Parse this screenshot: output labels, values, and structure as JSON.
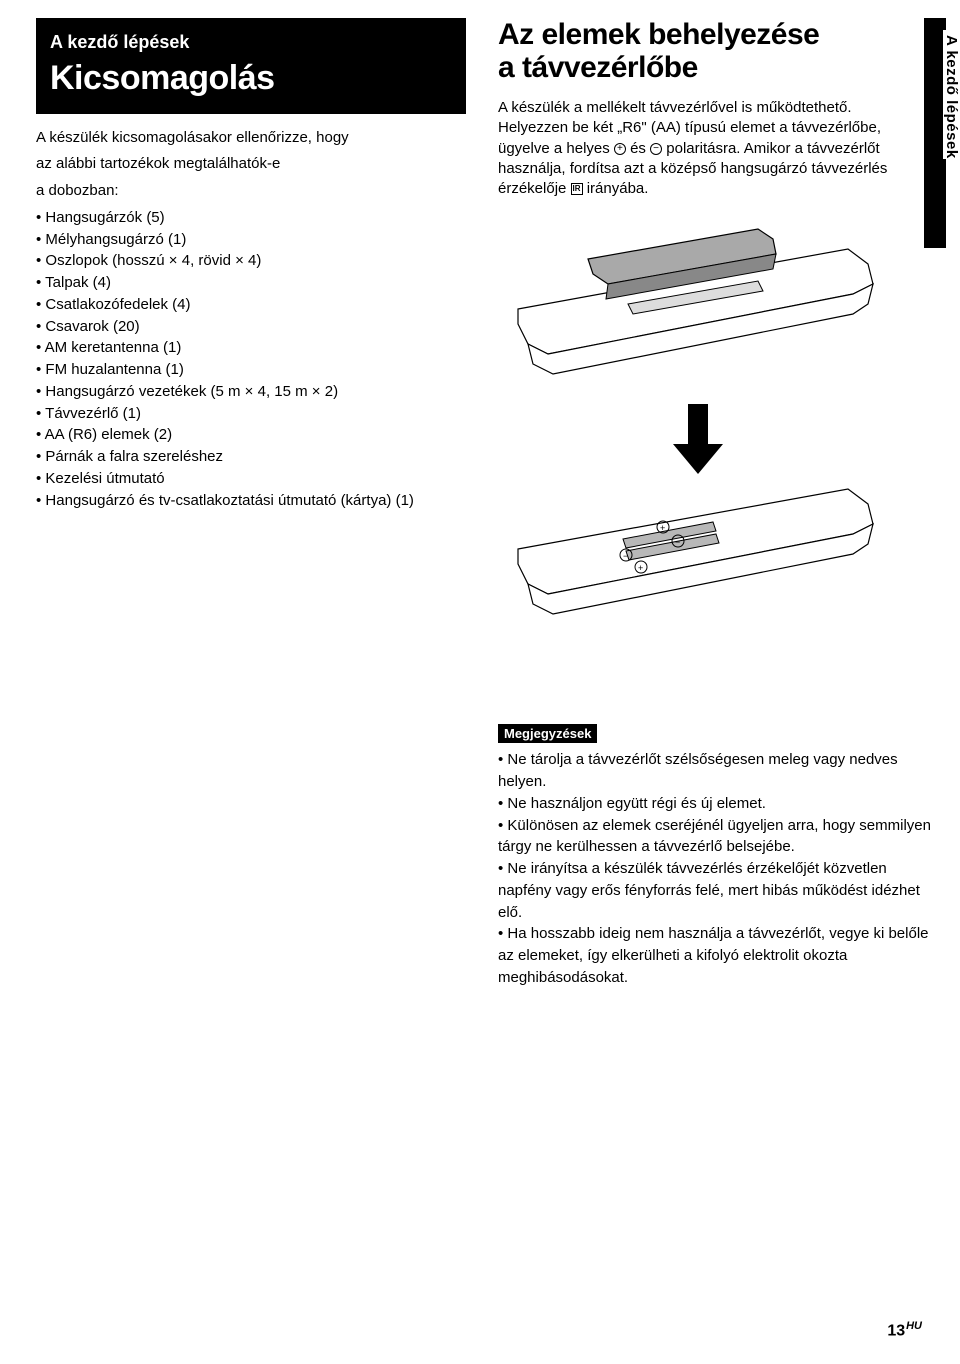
{
  "left": {
    "header_small": "A kezdő lépések",
    "header_big": "Kicsomagolás",
    "intro_line1": "A készülék kicsomagolásakor ellenőrizze, hogy",
    "intro_line2": "az alábbi tartozékok megtalálhatók-e",
    "intro_line3": "a dobozban:",
    "items": [
      "Hangsugárzók (5)",
      "Mélyhangsugárzó (1)",
      "Oszlopok (hosszú × 4, rövid × 4)",
      "Talpak (4)",
      "Csatlakozófedelek (4)",
      "Csavarok (20)",
      "AM keretantenna (1)",
      "FM huzalantenna (1)",
      "Hangsugárzó vezetékek (5 m × 4, 15 m × 2)",
      "Távvezérlő (1)",
      "AA (R6) elemek (2)",
      "Párnák a falra szereléshez",
      "Kezelési útmutató",
      "Hangsugárzó és tv-csatlakoztatási útmutató (kártya) (1)"
    ]
  },
  "right": {
    "title_line1": "Az elemek behelyezése",
    "title_line2": "a távvezérlőbe",
    "para_pre": "A készülék a mellékelt távvezérlővel is működtethető. Helyezzen be két „R6\" (AA) típusú elemet a távvezérlőbe, ügyelve a helyes ",
    "para_mid": " és ",
    "para_post": " polaritásra. Amikor a távvezérlőt használja, fordítsa azt a középső hangsugárzó távvezérlés érzékelője ",
    "para_end": " irányába."
  },
  "side_label": "A kezdő lépések",
  "notes": {
    "badge": "Megjegyzések",
    "items": [
      "Ne tárolja a távvezérlőt szélsőségesen meleg vagy nedves helyen.",
      "Ne használjon együtt régi és új elemet.",
      "Különösen az elemek cseréjénél ügyeljen arra, hogy semmilyen tárgy ne kerülhessen a távvezérlő belsejébe.",
      "Ne irányítsa a készülék távvezérlés érzékelőjét közvetlen napfény vagy erős fényforrás felé, mert hibás működést idézhet elő.",
      "Ha hosszabb ideig nem használja a távvezérlőt, vegye ki belőle az elemeket, így elkerülheti a kifolyó elektrolit okozta meghibásodásokat."
    ]
  },
  "page": {
    "num": "13",
    "lang": "HU"
  },
  "illustration": {
    "remote1": {
      "body_fill": "#ffffff",
      "body_stroke": "#000000",
      "cover_fill": "#a9a9a9",
      "cover_stroke": "#000000"
    },
    "remote2": {
      "body_fill": "#ffffff",
      "body_stroke": "#000000",
      "battery_fill": "#b8b8b8",
      "battery_stroke": "#000000"
    },
    "arrow_fill": "#000000"
  }
}
